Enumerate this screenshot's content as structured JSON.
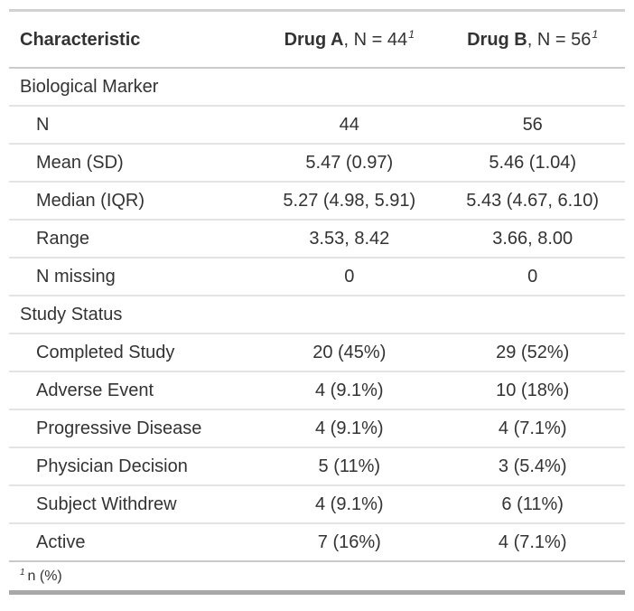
{
  "table": {
    "columns": {
      "characteristic": "Characteristic",
      "groups": [
        {
          "name": "Drug A",
          "suffix": ", N = 44",
          "footnote_mark": "1"
        },
        {
          "name": "Drug B",
          "suffix": ", N = 56",
          "footnote_mark": "1"
        }
      ]
    },
    "rows": [
      {
        "type": "group",
        "label": "Biological Marker",
        "a": "",
        "b": ""
      },
      {
        "type": "item",
        "label": "N",
        "a": "44",
        "b": "56"
      },
      {
        "type": "item",
        "label": "Mean (SD)",
        "a": "5.47 (0.97)",
        "b": "5.46 (1.04)"
      },
      {
        "type": "item",
        "label": "Median (IQR)",
        "a": "5.27 (4.98, 5.91)",
        "b": "5.43 (4.67, 6.10)"
      },
      {
        "type": "item",
        "label": "Range",
        "a": "3.53, 8.42",
        "b": "3.66, 8.00"
      },
      {
        "type": "item",
        "label": "N missing",
        "a": "0",
        "b": "0"
      },
      {
        "type": "group",
        "label": "Study Status",
        "a": "",
        "b": ""
      },
      {
        "type": "item",
        "label": "Completed Study",
        "a": "20 (45%)",
        "b": "29 (52%)"
      },
      {
        "type": "item",
        "label": "Adverse Event",
        "a": "4 (9.1%)",
        "b": "10 (18%)"
      },
      {
        "type": "item",
        "label": "Progressive Disease",
        "a": "4 (9.1%)",
        "b": "4 (7.1%)"
      },
      {
        "type": "item",
        "label": "Physician Decision",
        "a": "5 (11%)",
        "b": "3 (5.4%)"
      },
      {
        "type": "item",
        "label": "Subject Withdrew",
        "a": "4 (9.1%)",
        "b": "6 (11%)"
      },
      {
        "type": "item",
        "label": "Active",
        "a": "7 (16%)",
        "b": "4 (7.1%)"
      }
    ],
    "footnote": {
      "mark": "1",
      "text": "n (%)"
    }
  },
  "colors": {
    "text": "#333333",
    "border_top": "#d2d2d2",
    "border_header": "#cbcbcb",
    "border_row": "#e3e3e3",
    "border_bottom": "#a8a8a8"
  }
}
